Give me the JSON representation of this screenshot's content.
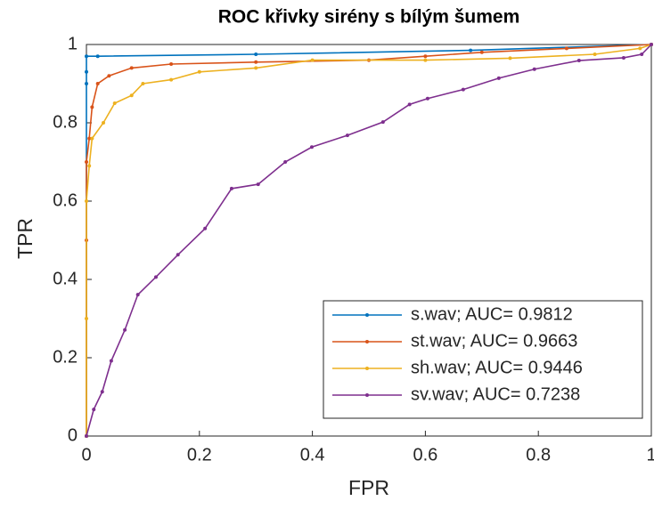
{
  "chart_data": {
    "type": "line",
    "title": "ROC křivky sirény s bílým šumem",
    "x_label": "FPR",
    "y_label": "TPR",
    "xlim": [
      0,
      1
    ],
    "ylim": [
      0,
      1
    ],
    "xticks": [
      0,
      0.2,
      0.4,
      0.6,
      0.8,
      1
    ],
    "yticks": [
      0,
      0.2,
      0.4,
      0.6,
      0.8,
      1
    ],
    "grid": false,
    "legend": "lower right",
    "series": [
      {
        "name": "s.wav; AUC= 0.9812",
        "color": "#0072bd",
        "x": [
          0,
          0,
          0,
          0,
          0.02,
          0.3,
          0.68,
          1
        ],
        "values": [
          0,
          0.9,
          0.93,
          0.97,
          0.97,
          0.975,
          0.985,
          1
        ]
      },
      {
        "name": "st.wav; AUC= 0.9663",
        "color": "#d95319",
        "x": [
          0,
          0,
          0,
          0.005,
          0.01,
          0.02,
          0.04,
          0.08,
          0.15,
          0.3,
          0.5,
          0.6,
          0.7,
          0.85,
          1
        ],
        "values": [
          0,
          0.5,
          0.7,
          0.76,
          0.84,
          0.9,
          0.92,
          0.94,
          0.95,
          0.955,
          0.96,
          0.97,
          0.98,
          0.99,
          1
        ]
      },
      {
        "name": "sh.wav; AUC= 0.9446",
        "color": "#edb120",
        "x": [
          0,
          0,
          0,
          0.005,
          0.01,
          0.03,
          0.05,
          0.08,
          0.1,
          0.15,
          0.2,
          0.3,
          0.4,
          0.6,
          0.75,
          0.9,
          0.98,
          1
        ],
        "values": [
          0,
          0.3,
          0.6,
          0.69,
          0.76,
          0.8,
          0.85,
          0.87,
          0.9,
          0.91,
          0.93,
          0.94,
          0.96,
          0.96,
          0.965,
          0.975,
          0.99,
          1
        ]
      },
      {
        "name": "sv.wav; AUC= 0.7238",
        "color": "#7e2f8e",
        "x": [
          0,
          0.013,
          0.028,
          0.044,
          0.068,
          0.091,
          0.123,
          0.162,
          0.21,
          0.257,
          0.304,
          0.352,
          0.399,
          0.462,
          0.525,
          0.572,
          0.604,
          0.667,
          0.73,
          0.793,
          0.872,
          0.951,
          0.983,
          1
        ],
        "values": [
          0,
          0.068,
          0.113,
          0.192,
          0.271,
          0.361,
          0.406,
          0.463,
          0.53,
          0.632,
          0.643,
          0.7,
          0.738,
          0.768,
          0.802,
          0.847,
          0.862,
          0.885,
          0.914,
          0.937,
          0.959,
          0.966,
          0.975,
          1
        ]
      }
    ]
  }
}
